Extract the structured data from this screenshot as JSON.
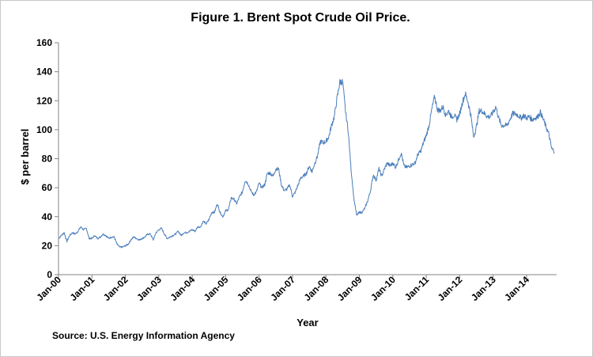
{
  "chart_data": {
    "type": "line",
    "title": "Figure 1. Brent Spot Crude Oil Price.",
    "xlabel": "Year",
    "ylabel": "$ per barrel",
    "source": "Source:  U.S. Energy Information Agency",
    "ylim": [
      0,
      160
    ],
    "yticks": [
      0,
      20,
      40,
      60,
      80,
      100,
      120,
      140,
      160
    ],
    "xlim": [
      2000.0,
      2014.9
    ],
    "x_tick_labels": [
      "Jan-00",
      "Jan-01",
      "Jan-02",
      "Jan-03",
      "Jan-04",
      "Jan-05",
      "Jan-06",
      "Jan-07",
      "Jan-08",
      "Jan-09",
      "Jan-10",
      "Jan-11",
      "Jan-12",
      "Jan-13",
      "Jan-14"
    ],
    "grid": false,
    "legend": "none",
    "line_color": "#4a7ebb",
    "series": [
      {
        "x": [
          "Jan-00",
          "Feb-00",
          "Mar-00",
          "Apr-00",
          "May-00",
          "Jun-00",
          "Jul-00",
          "Aug-00",
          "Sep-00",
          "Oct-00",
          "Nov-00",
          "Dec-00",
          "Jan-01",
          "Feb-01",
          "Mar-01",
          "Apr-01",
          "May-01",
          "Jun-01",
          "Jul-01",
          "Aug-01",
          "Sep-01",
          "Oct-01",
          "Nov-01",
          "Dec-01",
          "Jan-02",
          "Feb-02",
          "Mar-02",
          "Apr-02",
          "May-02",
          "Jun-02",
          "Jul-02",
          "Aug-02",
          "Sep-02",
          "Oct-02",
          "Nov-02",
          "Dec-02",
          "Jan-03",
          "Feb-03",
          "Mar-03",
          "Apr-03",
          "May-03",
          "Jun-03",
          "Jul-03",
          "Aug-03",
          "Sep-03",
          "Oct-03",
          "Nov-03",
          "Dec-03",
          "Jan-04",
          "Feb-04",
          "Mar-04",
          "Apr-04",
          "May-04",
          "Jun-04",
          "Jul-04",
          "Aug-04",
          "Sep-04",
          "Oct-04",
          "Nov-04",
          "Dec-04",
          "Jan-05",
          "Feb-05",
          "Mar-05",
          "Apr-05",
          "May-05",
          "Jun-05",
          "Jul-05",
          "Aug-05",
          "Sep-05",
          "Oct-05",
          "Nov-05",
          "Dec-05",
          "Jan-06",
          "Feb-06",
          "Mar-06",
          "Apr-06",
          "May-06",
          "Jun-06",
          "Jul-06",
          "Aug-06",
          "Sep-06",
          "Oct-06",
          "Nov-06",
          "Dec-06",
          "Jan-07",
          "Feb-07",
          "Mar-07",
          "Apr-07",
          "May-07",
          "Jun-07",
          "Jul-07",
          "Aug-07",
          "Sep-07",
          "Oct-07",
          "Nov-07",
          "Dec-07",
          "Jan-08",
          "Feb-08",
          "Mar-08",
          "Apr-08",
          "May-08",
          "Jun-08",
          "Jul-08",
          "Aug-08",
          "Sep-08",
          "Oct-08",
          "Nov-08",
          "Dec-08",
          "Jan-09",
          "Feb-09",
          "Mar-09",
          "Apr-09",
          "May-09",
          "Jun-09",
          "Jul-09",
          "Aug-09",
          "Sep-09",
          "Oct-09",
          "Nov-09",
          "Dec-09",
          "Jan-10",
          "Feb-10",
          "Mar-10",
          "Apr-10",
          "May-10",
          "Jun-10",
          "Jul-10",
          "Aug-10",
          "Sep-10",
          "Oct-10",
          "Nov-10",
          "Dec-10",
          "Jan-11",
          "Feb-11",
          "Mar-11",
          "Apr-11",
          "May-11",
          "Jun-11",
          "Jul-11",
          "Aug-11",
          "Sep-11",
          "Oct-11",
          "Nov-11",
          "Dec-11",
          "Jan-12",
          "Feb-12",
          "Mar-12",
          "Apr-12",
          "May-12",
          "Jun-12",
          "Jul-12",
          "Aug-12",
          "Sep-12",
          "Oct-12",
          "Nov-12",
          "Dec-12",
          "Jan-13",
          "Feb-13",
          "Mar-13",
          "Apr-13",
          "May-13",
          "Jun-13",
          "Jul-13",
          "Aug-13",
          "Sep-13",
          "Oct-13",
          "Nov-13",
          "Dec-13",
          "Jan-14",
          "Feb-14",
          "Mar-14",
          "Apr-14",
          "May-14",
          "Jun-14",
          "Jul-14",
          "Aug-14",
          "Sep-14",
          "Oct-14",
          "Nov-14"
        ],
        "values": [
          25,
          27,
          29,
          23,
          27,
          29,
          28,
          30,
          33,
          31,
          32,
          25,
          25,
          27,
          25,
          26,
          28,
          27,
          25,
          26,
          26,
          21,
          19,
          19,
          20,
          21,
          24,
          26,
          25,
          24,
          25,
          26,
          28,
          28,
          24,
          29,
          31,
          32,
          28,
          25,
          26,
          27,
          28,
          30,
          27,
          29,
          29,
          30,
          31,
          30,
          33,
          33,
          37,
          35,
          38,
          43,
          43,
          49,
          43,
          40,
          44,
          45,
          53,
          52,
          49,
          54,
          57,
          65,
          63,
          58,
          55,
          57,
          63,
          60,
          62,
          70,
          70,
          68,
          73,
          73,
          62,
          58,
          59,
          62,
          54,
          57,
          62,
          67,
          68,
          70,
          75,
          71,
          77,
          82,
          92,
          91,
          92,
          95,
          103,
          109,
          122,
          133,
          133,
          113,
          99,
          73,
          53,
          41,
          43,
          43,
          46,
          51,
          58,
          69,
          65,
          73,
          68,
          73,
          77,
          75,
          77,
          74,
          79,
          84,
          75,
          74,
          75,
          76,
          77,
          83,
          85,
          91,
          96,
          103,
          114,
          123,
          114,
          113,
          116,
          110,
          113,
          109,
          110,
          107,
          111,
          119,
          125,
          119,
          110,
          95,
          102,
          113,
          113,
          111,
          109,
          109,
          112,
          116,
          108,
          103,
          103,
          103,
          107,
          111,
          111,
          110,
          108,
          110,
          108,
          109,
          107,
          108,
          109,
          112,
          107,
          102,
          97,
          87,
          85
        ]
      }
    ]
  }
}
